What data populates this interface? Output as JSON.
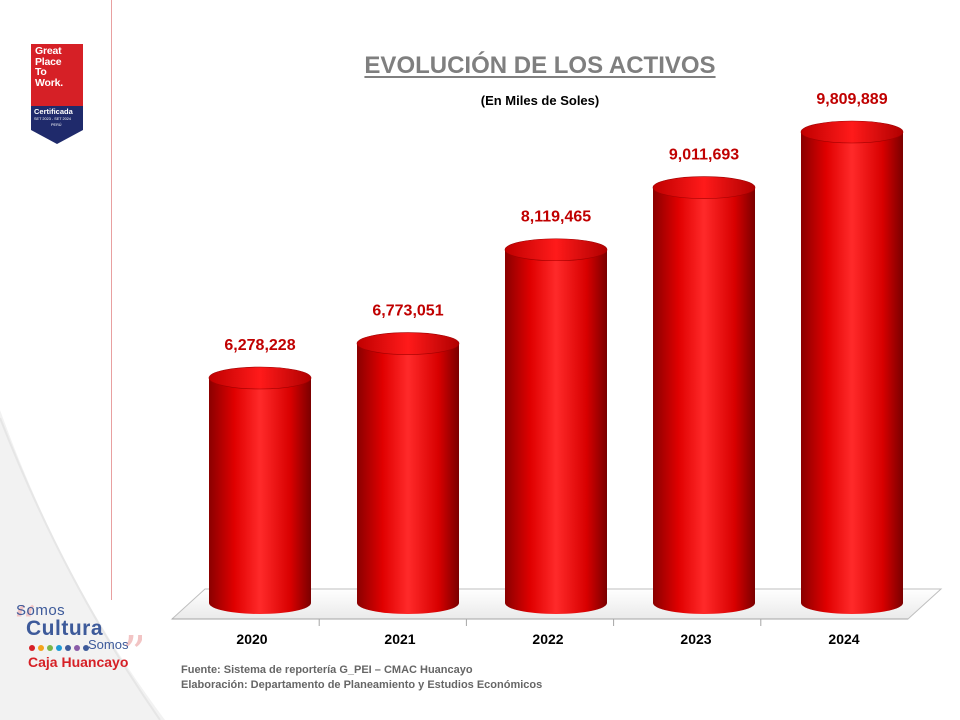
{
  "header": {
    "title": "EVOLUCIÓN DE LOS ACTIVOS",
    "subtitle": "(En Miles de Soles)"
  },
  "badge": {
    "lines": [
      "Great",
      "Place",
      "To",
      "Work."
    ],
    "certified": "Certificada",
    "dates": "SET 2023 - SET 2024",
    "country": "PERÚ",
    "colors": {
      "top": "#d62026",
      "bottom": "#1f2a6b"
    }
  },
  "brand": {
    "somos_top": "Somos",
    "cultura": "Cultura",
    "somos_bottom": "Somos",
    "name": "Caja Huancayo"
  },
  "footer": {
    "source": "Fuente: Sistema de reportería G_PEI – CMAC Huancayo",
    "prepared_by": "Elaboración: Departamento de Planeamiento y Estudios Económicos"
  },
  "chart_data": {
    "type": "bar",
    "categories": [
      "2020",
      "2021",
      "2022",
      "2023",
      "2024"
    ],
    "values": [
      6278228,
      6773051,
      8119465,
      9011693,
      9809889
    ],
    "value_labels": [
      "6,278,228",
      "6,773,051",
      "8,119,465",
      "9,011,693",
      "9,809,889"
    ],
    "title": "EVOLUCIÓN DE LOS ACTIVOS",
    "subtitle": "(En Miles de Soles)",
    "xlabel": "",
    "ylabel": "",
    "ylim": [
      0,
      12000000
    ],
    "grid": false,
    "legend": "none",
    "bar_style": "cylinder",
    "colors": {
      "bar": "#e00000",
      "label": "#c00000"
    }
  }
}
